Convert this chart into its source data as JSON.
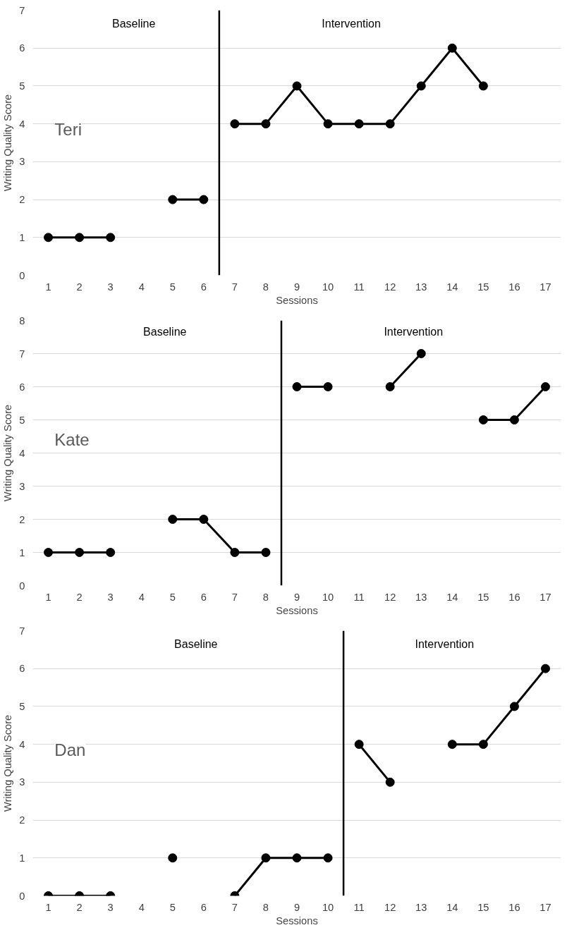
{
  "chart_data": [
    {
      "type": "line",
      "ylabel": "Writing Quality Score",
      "xlabel": "Sessions",
      "xlim": [
        0.5,
        17.5
      ],
      "xticks": [
        1,
        2,
        3,
        4,
        5,
        6,
        7,
        8,
        9,
        10,
        11,
        12,
        13,
        14,
        15,
        16,
        17
      ],
      "ylim": [
        0,
        7
      ],
      "yticks": [
        0,
        1,
        2,
        3,
        4,
        5,
        6,
        7
      ],
      "grid": "y",
      "marker": "circle",
      "line_style": "solid",
      "series": [
        {
          "color": "#000000",
          "x": [
            1,
            2,
            3,
            4,
            5,
            6
          ],
          "values": [
            1,
            1,
            1,
            null,
            2,
            2
          ]
        },
        {
          "color": "#000000",
          "x": [
            7,
            8,
            9,
            10,
            11,
            12,
            13,
            14,
            15
          ],
          "values": [
            4,
            4,
            5,
            4,
            4,
            4,
            5,
            6,
            5
          ]
        }
      ],
      "ref_lines": [
        {
          "axis": "x",
          "value": 6.5,
          "color": "#000000"
        }
      ],
      "annotations": [
        "Baseline",
        "Intervention",
        "Teri"
      ]
    },
    {
      "type": "line",
      "ylabel": "Writing Quality Score",
      "xlabel": "Sessions",
      "xlim": [
        0.5,
        17.5
      ],
      "xticks": [
        1,
        2,
        3,
        4,
        5,
        6,
        7,
        8,
        9,
        10,
        11,
        12,
        13,
        14,
        15,
        16,
        17
      ],
      "ylim": [
        0,
        8
      ],
      "yticks": [
        0,
        1,
        2,
        3,
        4,
        5,
        6,
        7,
        8
      ],
      "grid": "y",
      "marker": "circle",
      "line_style": "solid",
      "series": [
        {
          "color": "#000000",
          "x": [
            1,
            2,
            3,
            4,
            5,
            6,
            7,
            8
          ],
          "values": [
            1,
            1,
            1,
            null,
            2,
            2,
            1,
            1
          ]
        },
        {
          "color": "#000000",
          "x": [
            9,
            10,
            11,
            12,
            13,
            14,
            15,
            16,
            17
          ],
          "values": [
            6,
            6,
            null,
            6,
            7,
            null,
            5,
            5,
            6
          ]
        }
      ],
      "ref_lines": [
        {
          "axis": "x",
          "value": 8.5,
          "color": "#000000"
        }
      ],
      "annotations": [
        "Baseline",
        "Intervention",
        "Kate"
      ]
    },
    {
      "type": "line",
      "ylabel": "Writing Quality Score",
      "xlabel": "Sessions",
      "xlim": [
        0.5,
        17.5
      ],
      "xticks": [
        1,
        2,
        3,
        4,
        5,
        6,
        7,
        8,
        9,
        10,
        11,
        12,
        13,
        14,
        15,
        16,
        17
      ],
      "ylim": [
        0,
        7
      ],
      "yticks": [
        0,
        1,
        2,
        3,
        4,
        5,
        6,
        7
      ],
      "grid": "y",
      "marker": "circle",
      "line_style": "solid",
      "series": [
        {
          "color": "#000000",
          "x": [
            1,
            2,
            3,
            4,
            5,
            6,
            7,
            8,
            9,
            10
          ],
          "values": [
            0,
            0,
            0,
            null,
            1,
            null,
            0,
            1,
            1,
            1
          ]
        },
        {
          "color": "#000000",
          "x": [
            11,
            12,
            13,
            14,
            15,
            16,
            17
          ],
          "values": [
            4,
            3,
            null,
            4,
            4,
            5,
            6
          ]
        }
      ],
      "ref_lines": [
        {
          "axis": "x",
          "value": 10.5,
          "color": "#000000"
        }
      ],
      "annotations": [
        "Baseline",
        "Intervention",
        "Dan"
      ]
    }
  ]
}
